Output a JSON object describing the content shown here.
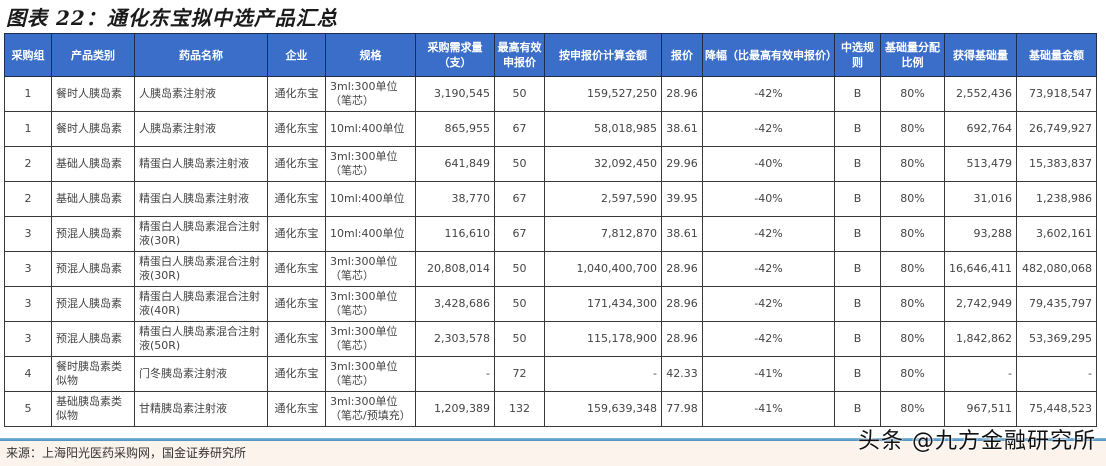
{
  "title": "图表 22：通化东宝拟中选产品汇总",
  "table": {
    "headers": [
      "采购组",
      "产品类别",
      "药品名称",
      "企业",
      "规格",
      "采购需求量（支）",
      "最高有效申报价",
      "按申报价计算金额",
      "报价",
      "降幅（比最高有效申报价）",
      "中选规则",
      "基础量分配比例",
      "获得基础量",
      "基础量金额"
    ],
    "rows": [
      [
        "1",
        "餐时人胰岛素",
        "人胰岛素注射液",
        "通化东宝",
        "3ml:300单位（笔芯）",
        "3,190,545",
        "50",
        "159,527,250",
        "28.96",
        "-42%",
        "B",
        "80%",
        "2,552,436",
        "73,918,547"
      ],
      [
        "1",
        "餐时人胰岛素",
        "人胰岛素注射液",
        "通化东宝",
        "10ml:400单位",
        "865,955",
        "67",
        "58,018,985",
        "38.61",
        "-42%",
        "B",
        "80%",
        "692,764",
        "26,749,927"
      ],
      [
        "2",
        "基础人胰岛素",
        "精蛋白人胰岛素注射液",
        "通化东宝",
        "3ml:300单位（笔芯）",
        "641,849",
        "50",
        "32,092,450",
        "29.96",
        "-40%",
        "B",
        "80%",
        "513,479",
        "15,383,837"
      ],
      [
        "2",
        "基础人胰岛素",
        "精蛋白人胰岛素注射液",
        "通化东宝",
        "10ml:400单位",
        "38,770",
        "67",
        "2,597,590",
        "39.95",
        "-40%",
        "B",
        "80%",
        "31,016",
        "1,238,986"
      ],
      [
        "3",
        "预混人胰岛素",
        "精蛋白人胰岛素混合注射液(30R)",
        "通化东宝",
        "10ml:400单位",
        "116,610",
        "67",
        "7,812,870",
        "38.61",
        "-42%",
        "B",
        "80%",
        "93,288",
        "3,602,161"
      ],
      [
        "3",
        "预混人胰岛素",
        "精蛋白人胰岛素混合注射液(30R)",
        "通化东宝",
        "3ml:300单位（笔芯）",
        "20,808,014",
        "50",
        "1,040,400,700",
        "28.96",
        "-42%",
        "B",
        "80%",
        "16,646,411",
        "482,080,068"
      ],
      [
        "3",
        "预混人胰岛素",
        "精蛋白人胰岛素混合注射液(40R)",
        "通化东宝",
        "3ml:300单位（笔芯）",
        "3,428,686",
        "50",
        "171,434,300",
        "28.96",
        "-42%",
        "B",
        "80%",
        "2,742,949",
        "79,435,797"
      ],
      [
        "3",
        "预混人胰岛素",
        "精蛋白人胰岛素混合注射液(50R)",
        "通化东宝",
        "3ml:300单位（笔芯）",
        "2,303,578",
        "50",
        "115,178,900",
        "28.96",
        "-42%",
        "B",
        "80%",
        "1,842,862",
        "53,369,295"
      ],
      [
        "4",
        "餐时胰岛素类似物",
        "门冬胰岛素注射液",
        "通化东宝",
        "3ml:300单位（笔芯）",
        "-",
        "72",
        "-",
        "42.33",
        "-41%",
        "B",
        "80%",
        "-",
        "-"
      ],
      [
        "5",
        "基础胰岛素类似物",
        "甘精胰岛素注射液",
        "通化东宝",
        "3ml:300单位（笔芯/预填充）",
        "1,209,389",
        "132",
        "159,639,348",
        "77.98",
        "-41%",
        "B",
        "80%",
        "967,511",
        "75,448,523"
      ]
    ]
  },
  "footer": {
    "source": "来源：上海阳光医药采购网，国金证券研究所",
    "watermark": "头条 @九方金融研究所"
  },
  "colors": {
    "header_bg": "#3a6ec9",
    "header_text": "#ffffff",
    "rule": "#4a90c4",
    "footer_bg": "#fbf3ec"
  }
}
